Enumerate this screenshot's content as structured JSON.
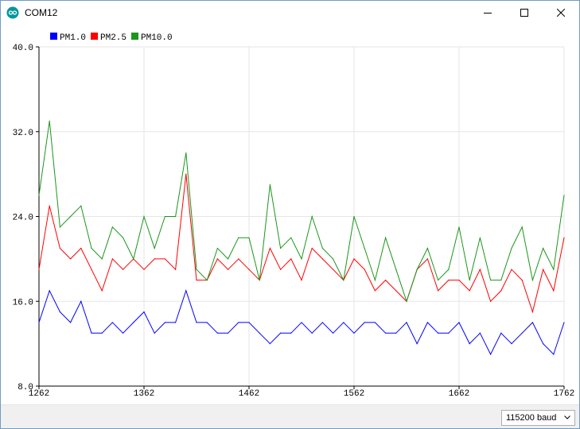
{
  "window": {
    "title": "COM12",
    "minimize_icon": "minimize-icon",
    "maximize_icon": "maximize-icon",
    "close_icon": "close-icon"
  },
  "colors": {
    "background": "#ffffff",
    "grid": "#e6e6e6",
    "axis": "#000000"
  },
  "bottom_bar": {
    "baud_selected": "115200 baud"
  },
  "chart_data": {
    "type": "line",
    "title": "",
    "xlabel": "",
    "ylabel": "",
    "xlim": [
      1262,
      1762
    ],
    "ylim": [
      8.0,
      40.0
    ],
    "x_ticks": [
      1262,
      1362,
      1462,
      1562,
      1662,
      1762
    ],
    "y_ticks": [
      8.0,
      16.0,
      24.0,
      32.0,
      40.0
    ],
    "x_tick_labels": [
      "1262",
      "1362",
      "1462",
      "1562",
      "1662",
      "1762"
    ],
    "y_tick_labels": [
      "8.0",
      "16.0",
      "24.0",
      "32.0",
      "40.0"
    ],
    "grid": true,
    "legend_position": "top-left",
    "x_start": 1262,
    "x_step": 10,
    "series": [
      {
        "name": "PM1.0",
        "color": "#0000ff",
        "values": [
          14,
          17,
          15,
          14,
          16,
          13,
          13,
          14,
          13,
          14,
          15,
          13,
          14,
          14,
          17,
          14,
          14,
          13,
          13,
          14,
          14,
          13,
          12,
          13,
          13,
          14,
          13,
          14,
          13,
          14,
          13,
          14,
          14,
          13,
          13,
          14,
          12,
          14,
          13,
          13,
          14,
          12,
          13,
          11,
          13,
          12,
          13,
          14,
          12,
          11,
          14
        ]
      },
      {
        "name": "PM2.5",
        "color": "#ff0000",
        "values": [
          19,
          25,
          21,
          20,
          21,
          19,
          17,
          20,
          19,
          20,
          19,
          20,
          20,
          19,
          28,
          18,
          18,
          20,
          19,
          20,
          19,
          18,
          21,
          19,
          20,
          18,
          21,
          20,
          19,
          18,
          20,
          19,
          17,
          18,
          17,
          16,
          19,
          20,
          17,
          18,
          18,
          17,
          19,
          16,
          17,
          19,
          18,
          15,
          19,
          17,
          22
        ]
      },
      {
        "name": "PM10.0",
        "color": "#1a961a",
        "values": [
          26,
          33,
          23,
          24,
          25,
          21,
          20,
          23,
          22,
          20,
          24,
          21,
          24,
          24,
          30,
          19,
          18,
          21,
          20,
          22,
          22,
          18,
          27,
          21,
          22,
          20,
          24,
          21,
          20,
          18,
          24,
          21,
          18,
          22,
          19,
          16,
          19,
          21,
          18,
          19,
          23,
          18,
          22,
          18,
          18,
          21,
          23,
          18,
          21,
          19,
          26
        ]
      }
    ]
  }
}
